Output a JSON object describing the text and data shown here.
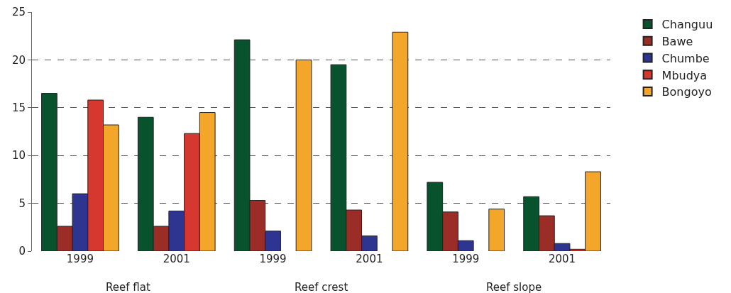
{
  "chart_data": {
    "type": "bar",
    "categories": [
      "1999",
      "2001",
      "1999",
      "2001",
      "1999",
      "2001"
    ],
    "series": [
      {
        "name": "Changuu",
        "color": "#08532e",
        "values": [
          16.5,
          14.0,
          22.1,
          19.5,
          7.2,
          5.7
        ]
      },
      {
        "name": "Bawe",
        "color": "#9b2d27",
        "values": [
          2.6,
          2.6,
          5.3,
          4.3,
          4.1,
          3.7
        ]
      },
      {
        "name": "Chumbe",
        "color": "#2e3590",
        "values": [
          6.0,
          4.2,
          2.1,
          1.6,
          1.1,
          0.8
        ]
      },
      {
        "name": "Mbudya",
        "color": "#d6372e",
        "values": [
          15.8,
          12.3,
          null,
          null,
          null,
          0.2
        ]
      },
      {
        "name": "Bongoyo",
        "color": "#f4a62a",
        "values": [
          13.2,
          14.5,
          20.0,
          22.9,
          4.4,
          8.3
        ]
      }
    ],
    "annotations": [
      "Reef flat",
      "Reef crest",
      "Reef slope"
    ],
    "ylim": [
      0,
      25
    ],
    "yticks": [
      0,
      5,
      10,
      15,
      20,
      25
    ],
    "grid": "y",
    "legend": "top right"
  }
}
